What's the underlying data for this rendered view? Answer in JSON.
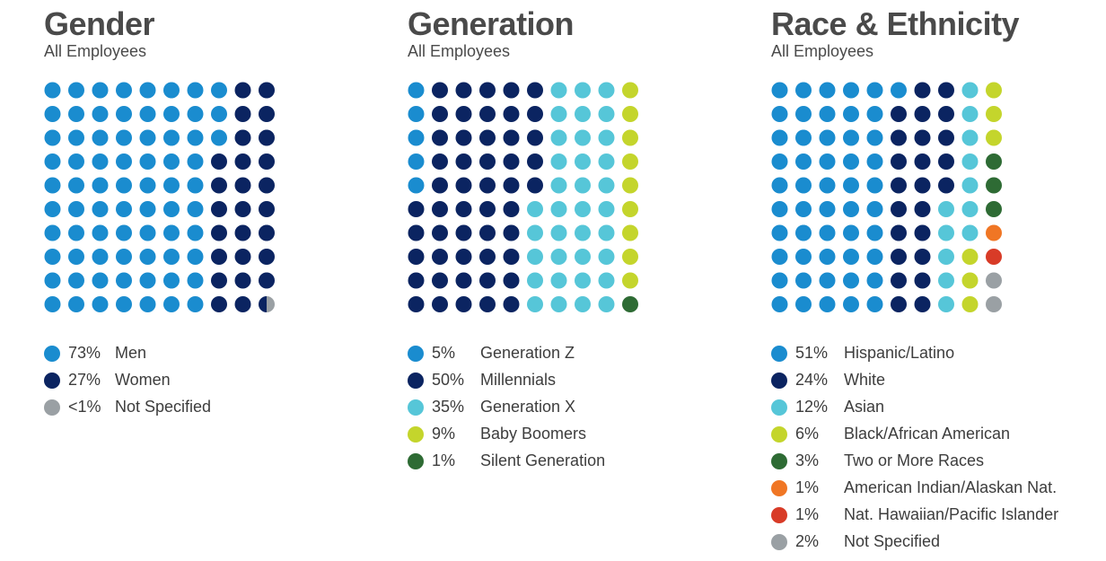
{
  "colors": {
    "light_blue": "#1a8ccf",
    "navy": "#0b2461",
    "teal": "#56c6d8",
    "lime": "#c4d52c",
    "green": "#2e6b34",
    "orange": "#f07624",
    "red": "#d83b27",
    "gray": "#9aa0a4"
  },
  "chart_data": [
    {
      "type": "waffle",
      "title": "Gender",
      "subtitle": "All Employees",
      "grid": {
        "rows": 10,
        "cols": 10,
        "fill_order": "columns"
      },
      "series": [
        {
          "pct_label": "73%",
          "name": "Men",
          "value": 73,
          "dots": 73,
          "color": "#1a8ccf"
        },
        {
          "pct_label": "27%",
          "name": "Women",
          "value": 27,
          "dots": 26.5,
          "color": "#0b2461"
        },
        {
          "pct_label": "<1%",
          "name": "Not Specified",
          "value": 0.5,
          "dots": 0.5,
          "color": "#9aa0a4"
        }
      ]
    },
    {
      "type": "waffle",
      "title": "Generation",
      "subtitle": "All Employees",
      "grid": {
        "rows": 10,
        "cols": 10,
        "fill_order": "columns"
      },
      "series": [
        {
          "pct_label": "5%",
          "name": "Generation Z",
          "value": 5,
          "dots": 5,
          "color": "#1a8ccf"
        },
        {
          "pct_label": "50%",
          "name": "Millennials",
          "value": 50,
          "dots": 50,
          "color": "#0b2461"
        },
        {
          "pct_label": "35%",
          "name": "Generation X",
          "value": 35,
          "dots": 35,
          "color": "#56c6d8"
        },
        {
          "pct_label": "9%",
          "name": "Baby Boomers",
          "value": 9,
          "dots": 9,
          "color": "#c4d52c"
        },
        {
          "pct_label": "1%",
          "name": "Silent Generation",
          "value": 1,
          "dots": 1,
          "color": "#2e6b34"
        }
      ]
    },
    {
      "type": "waffle",
      "title": "Race & Ethnicity",
      "subtitle": "All Employees",
      "grid": {
        "rows": 10,
        "cols": 10,
        "fill_order": "columns"
      },
      "series": [
        {
          "pct_label": "51%",
          "name": "Hispanic/Latino",
          "value": 51,
          "dots": 51,
          "color": "#1a8ccf"
        },
        {
          "pct_label": "24%",
          "name": "White",
          "value": 24,
          "dots": 24,
          "color": "#0b2461"
        },
        {
          "pct_label": "12%",
          "name": "Asian",
          "value": 12,
          "dots": 12,
          "color": "#56c6d8"
        },
        {
          "pct_label": "6%",
          "name": "Black/African American",
          "value": 6,
          "dots": 6,
          "color": "#c4d52c"
        },
        {
          "pct_label": "3%",
          "name": "Two or More Races",
          "value": 3,
          "dots": 3,
          "color": "#2e6b34"
        },
        {
          "pct_label": "1%",
          "name": "American Indian/Alaskan Nat.",
          "value": 1,
          "dots": 1,
          "color": "#f07624"
        },
        {
          "pct_label": "1%",
          "name": "Nat. Hawaiian/Pacific Islander",
          "value": 1,
          "dots": 1,
          "color": "#d83b27"
        },
        {
          "pct_label": "2%",
          "name": "Not Specified",
          "value": 2,
          "dots": 2,
          "color": "#9aa0a4"
        }
      ]
    }
  ]
}
